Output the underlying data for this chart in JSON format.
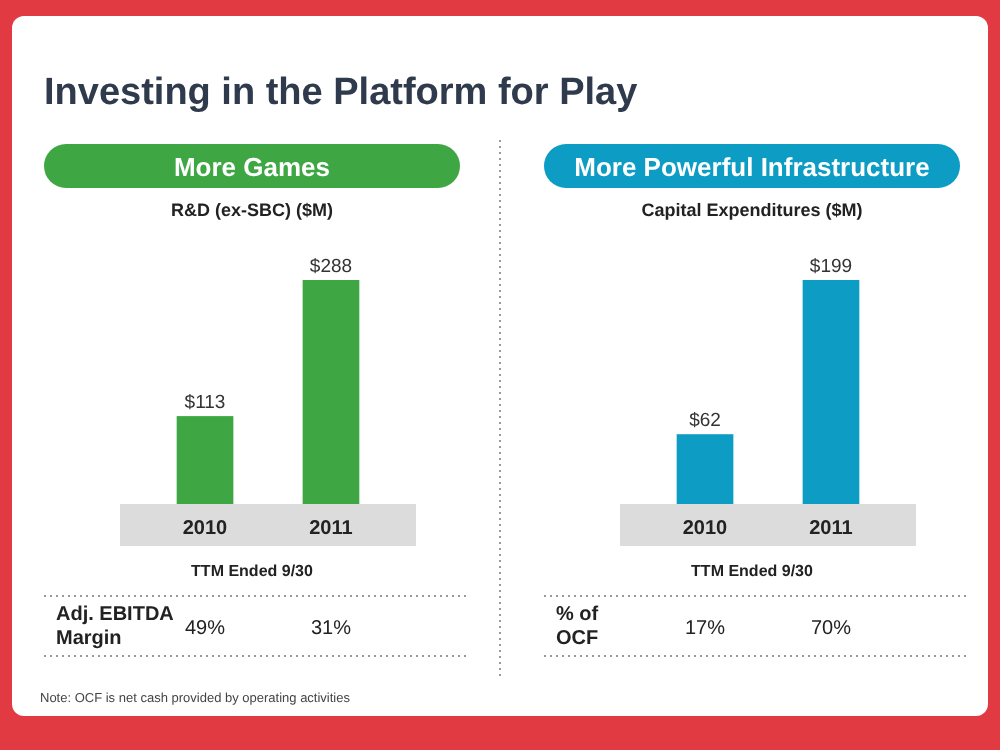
{
  "chart_data": [
    {
      "type": "other",
      "title": "Investing in the Platform for Play",
      "annotations": [
        "Note: OCF is net cash provided by operating activities"
      ]
    },
    {
      "type": "bar",
      "title": "More Games",
      "subtitle": "R&D (ex-SBC) ($M)",
      "xlabel": "TTM Ended 9/30",
      "categories": [
        "2010",
        "2011"
      ],
      "values": [
        113,
        288
      ],
      "value_labels": [
        "$113",
        "$288"
      ],
      "color": "#3ea744",
      "annotations": [
        "Adj. EBITDA Margin",
        "49%",
        "31%"
      ]
    },
    {
      "type": "bar",
      "title": "More Powerful Infrastructure",
      "subtitle": "Capital Expenditures ($M)",
      "xlabel": "TTM Ended 9/30",
      "categories": [
        "2010",
        "2011"
      ],
      "values": [
        62,
        199
      ],
      "value_labels": [
        "$62",
        "$199"
      ],
      "color": "#0c9cc4",
      "annotations": [
        "% of OCF",
        "17%",
        "70%"
      ]
    }
  ]
}
